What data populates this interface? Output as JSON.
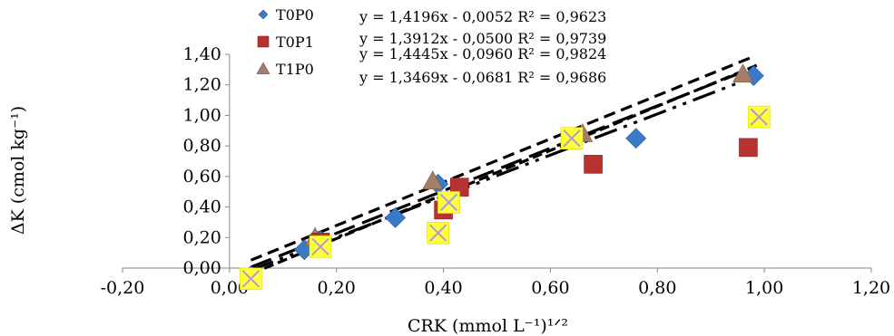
{
  "chart_data": {
    "type": "scatter",
    "title": "",
    "xlabel": "CRK (mmol L⁻¹)¹ᐟ²",
    "ylabel": "ΔK (cmol kg⁻¹)",
    "xlim": [
      -0.2,
      1.2
    ],
    "ylim": [
      0,
      1.4
    ],
    "x_ticks": [
      -0.2,
      0,
      0.2,
      0.4,
      0.6,
      0.8,
      1.0,
      1.2
    ],
    "y_ticks": [
      0,
      0.2,
      0.4,
      0.6,
      0.8,
      1.0,
      1.2,
      1.4
    ],
    "x_tick_labels": [
      "-0,20",
      "0,00",
      "0,20",
      "0,40",
      "0,60",
      "0,80",
      "1,00",
      "1,20"
    ],
    "y_tick_labels": [
      "0,00",
      "0,20",
      "0,40",
      "0,60",
      "0,80",
      "1,00",
      "1,20",
      "1,40"
    ],
    "grid": false,
    "legend_position": "top-left",
    "series": [
      {
        "name": "T0P0",
        "marker": "diamond",
        "color": "#3A7BC8",
        "x": [
          0.04,
          0.14,
          0.17,
          0.31,
          0.39,
          0.76,
          0.98
        ],
        "y": [
          -0.05,
          0.12,
          0.18,
          0.33,
          0.55,
          0.85,
          1.26
        ],
        "equation": "y = 1,4196x - 0,0052 R² = 0,9623",
        "fit": {
          "slope": 1.4196,
          "intercept": -0.0052,
          "x_range": [
            0.04,
            0.98
          ],
          "dash": "13,7"
        }
      },
      {
        "name": "T0P1",
        "marker": "square",
        "color": "#B83230",
        "x": [
          0.04,
          0.17,
          0.4,
          0.43,
          0.68,
          0.97
        ],
        "y": [
          -0.07,
          0.17,
          0.38,
          0.53,
          0.68,
          0.79
        ],
        "equation": "y = 1,3912x - 0,0500 R² = 0,9739",
        "fit": {
          "slope": 1.3912,
          "intercept": -0.05,
          "x_range": [
            0.04,
            0.97
          ],
          "dash": "24,9"
        }
      },
      {
        "name": "",
        "marker": "square-x",
        "color": "#FFFF3A",
        "x": [
          0.04,
          0.17,
          0.39,
          0.41,
          0.64,
          0.99
        ],
        "y": [
          -0.07,
          0.14,
          0.23,
          0.43,
          0.85,
          0.99
        ],
        "equation": "y = 1,4445x - 0,0960 R² = 0,9824",
        "fit": {
          "slope": 1.4445,
          "intercept": -0.096,
          "x_range": [
            0.04,
            0.99
          ],
          "dash": "11,5"
        }
      },
      {
        "name": "T1P0",
        "marker": "triangle",
        "color": "#A57D68",
        "x": [
          0.04,
          0.16,
          0.38,
          0.66,
          0.96
        ],
        "y": [
          -0.06,
          0.2,
          0.57,
          0.88,
          1.27
        ],
        "equation": "y = 1,3469x - 0,0681 R² = 0,9686",
        "fit": {
          "slope": 1.3469,
          "intercept": -0.0681,
          "x_range": [
            0.04,
            0.98
          ],
          "dash": "26,8,4,8,4,8"
        }
      }
    ]
  }
}
